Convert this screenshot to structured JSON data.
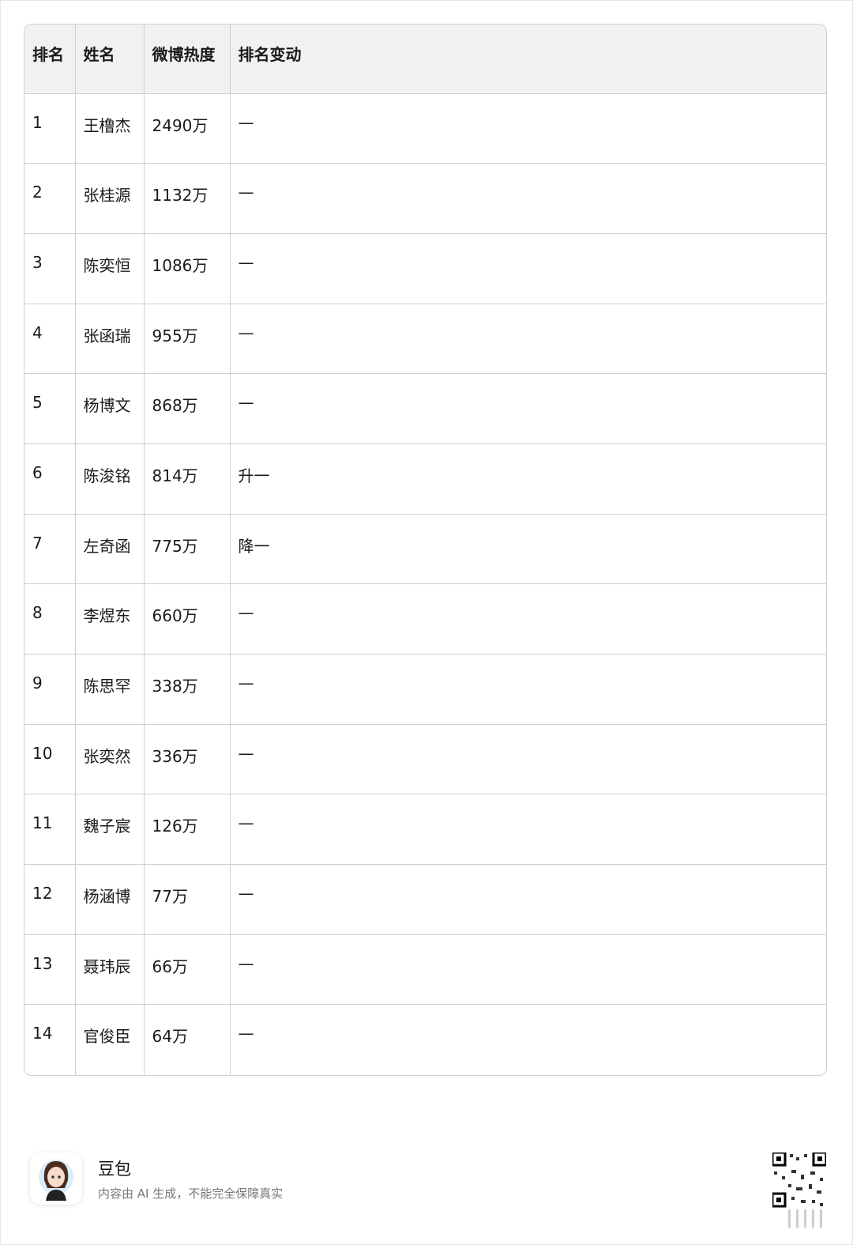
{
  "table": {
    "headers": [
      "排名",
      "姓名",
      "微博热度",
      "排名变动"
    ],
    "rows": [
      [
        "1",
        "王橹杰",
        "2490万",
        "—"
      ],
      [
        "2",
        "张桂源",
        "1132万",
        "—"
      ],
      [
        "3",
        "陈奕恒",
        "1086万",
        "—"
      ],
      [
        "4",
        "张函瑞",
        "955万",
        "—"
      ],
      [
        "5",
        "杨博文",
        "868万",
        "—"
      ],
      [
        "6",
        "陈浚铭",
        "814万",
        "升一"
      ],
      [
        "7",
        "左奇函",
        "775万",
        "降一"
      ],
      [
        "8",
        "李煜东",
        "660万",
        "—"
      ],
      [
        "9",
        "陈思罕",
        "338万",
        "—"
      ],
      [
        "10",
        "张奕然",
        "336万",
        "—"
      ],
      [
        "11",
        "魏子宸",
        "126万",
        "—"
      ],
      [
        "12",
        "杨涵博",
        "77万",
        "—"
      ],
      [
        "13",
        "聂玮辰",
        "66万",
        "—"
      ],
      [
        "14",
        "官俊臣",
        "64万",
        "—"
      ]
    ]
  },
  "footer": {
    "brand": "豆包",
    "disclaimer": "内容由 AI 生成，不能完全保障真实",
    "avatar_icon": "avatar-girl-icon",
    "qr_icon": "qr-code-icon"
  }
}
